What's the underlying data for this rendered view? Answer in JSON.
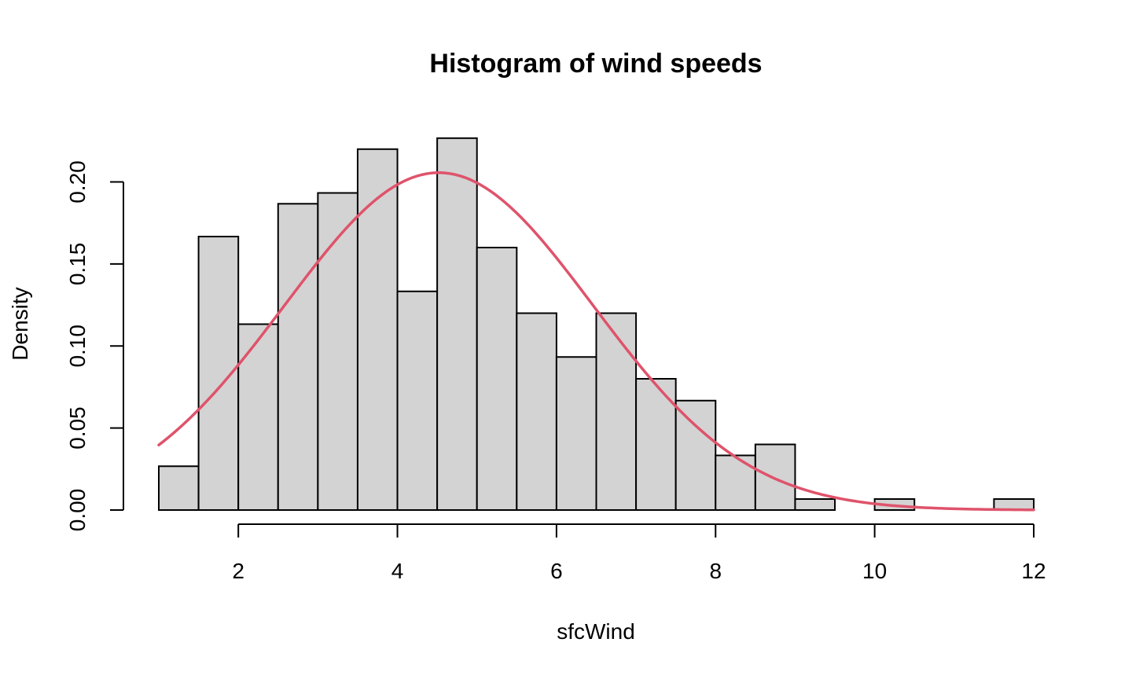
{
  "chart_data": {
    "type": "bar",
    "subtype": "histogram",
    "title": "Histogram of wind speeds",
    "xlabel": "sfcWind",
    "ylabel": "Density",
    "xlim": [
      1,
      12
    ],
    "ylim": [
      0,
      0.2266
    ],
    "x_ticks": [
      2,
      4,
      6,
      8,
      10,
      12
    ],
    "x_tick_labels": [
      "2",
      "4",
      "6",
      "8",
      "10",
      "12"
    ],
    "y_ticks": [
      0,
      0.05,
      0.1,
      0.15,
      0.2
    ],
    "y_tick_labels": [
      "0.00",
      "0.05",
      "0.10",
      "0.15",
      "0.20"
    ],
    "bin_width": 0.5,
    "bins": [
      {
        "start": 1.0,
        "end": 1.5,
        "density": 0.0267
      },
      {
        "start": 1.5,
        "end": 2.0,
        "density": 0.1667
      },
      {
        "start": 2.0,
        "end": 2.5,
        "density": 0.1133
      },
      {
        "start": 2.5,
        "end": 3.0,
        "density": 0.1867
      },
      {
        "start": 3.0,
        "end": 3.5,
        "density": 0.1933
      },
      {
        "start": 3.5,
        "end": 4.0,
        "density": 0.22
      },
      {
        "start": 4.0,
        "end": 4.5,
        "density": 0.1333
      },
      {
        "start": 4.5,
        "end": 5.0,
        "density": 0.2267
      },
      {
        "start": 5.0,
        "end": 5.5,
        "density": 0.16
      },
      {
        "start": 5.5,
        "end": 6.0,
        "density": 0.12
      },
      {
        "start": 6.0,
        "end": 6.5,
        "density": 0.0933
      },
      {
        "start": 6.5,
        "end": 7.0,
        "density": 0.12
      },
      {
        "start": 7.0,
        "end": 7.5,
        "density": 0.08
      },
      {
        "start": 7.5,
        "end": 8.0,
        "density": 0.0667
      },
      {
        "start": 8.0,
        "end": 8.5,
        "density": 0.0333
      },
      {
        "start": 8.5,
        "end": 9.0,
        "density": 0.04
      },
      {
        "start": 9.0,
        "end": 9.5,
        "density": 0.0067
      },
      {
        "start": 9.5,
        "end": 10.0,
        "density": 0
      },
      {
        "start": 10.0,
        "end": 10.5,
        "density": 0.0067
      },
      {
        "start": 10.5,
        "end": 11.0,
        "density": 0
      },
      {
        "start": 11.0,
        "end": 11.5,
        "density": 0
      },
      {
        "start": 11.5,
        "end": 12.0,
        "density": 0.0067
      }
    ],
    "density_curve": {
      "distribution": "normal",
      "mean": 4.52,
      "sd": 1.94,
      "x_range": [
        1,
        12
      ],
      "color": "#DF536B"
    },
    "bar_fill": "#D3D3D3",
    "bar_stroke": "#000000",
    "grid": false,
    "legend": "none"
  }
}
